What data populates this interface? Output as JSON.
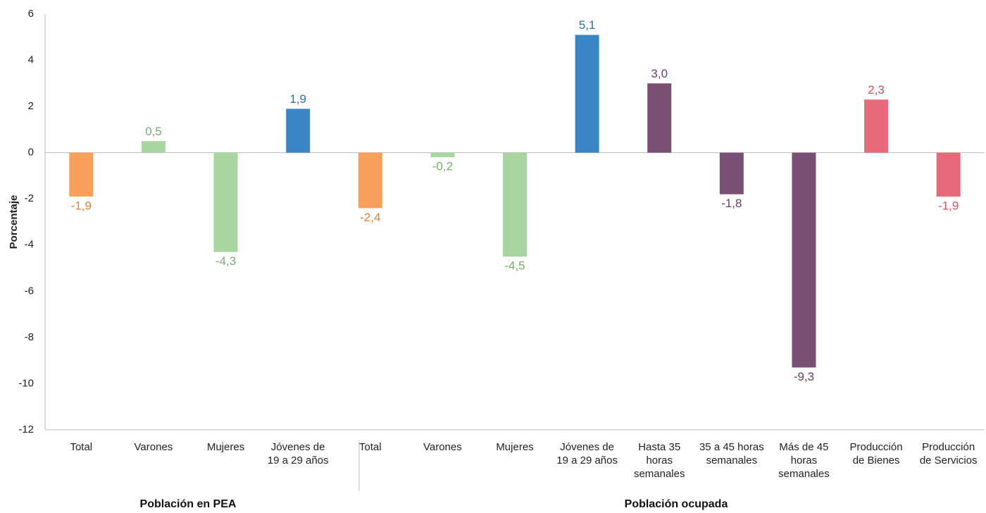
{
  "chart_data": {
    "type": "bar",
    "y_label": "Porcentaje",
    "categories": [
      "Total",
      "Varones",
      "Mujeres",
      "Jóvenes de 19 a 29 años",
      "Total",
      "Varones",
      "Mujeres",
      "Jóvenes de 19 a 29 años",
      "Hasta 35 horas semanales",
      "35 a 45 horas semanales",
      "Más de 45 horas semanales",
      "Producción de Bienes",
      "Producción de Servicios"
    ],
    "values": [
      -1.9,
      0.5,
      -4.3,
      1.9,
      -2.4,
      -0.2,
      -4.5,
      5.1,
      3.0,
      -1.8,
      -9.3,
      2.3,
      -1.9
    ],
    "value_labels": [
      "-1,9",
      "0,5",
      "-4,3",
      "1,9",
      "-2,4",
      "-0,2",
      "-4,5",
      "5,1",
      "3,0",
      "-1,8",
      "-9,3",
      "2,3",
      "-1,9"
    ],
    "colors": [
      "#f6a05a",
      "#a8d5a0",
      "#a8d5a0",
      "#3a87c8",
      "#f6a05a",
      "#a8d5a0",
      "#a8d5a0",
      "#3a87c8",
      "#7a4f74",
      "#7a4f74",
      "#7a4f74",
      "#e8697a",
      "#e8697a"
    ],
    "label_colors": [
      "#d9833a",
      "#7aaa6f",
      "#7aaa6f",
      "#2e6fa8",
      "#d9833a",
      "#7aaa6f",
      "#7aaa6f",
      "#2e6fa8",
      "#6a3f66",
      "#6a3f66",
      "#6a3f66",
      "#d9505f",
      "#d9505f"
    ],
    "group_labels": [
      "Población en PEA",
      "Población ocupada"
    ],
    "ylim": [
      -12,
      6
    ],
    "yticks": [
      6,
      4,
      2,
      0,
      -2,
      -4,
      -6,
      -8,
      -10,
      -12
    ]
  }
}
